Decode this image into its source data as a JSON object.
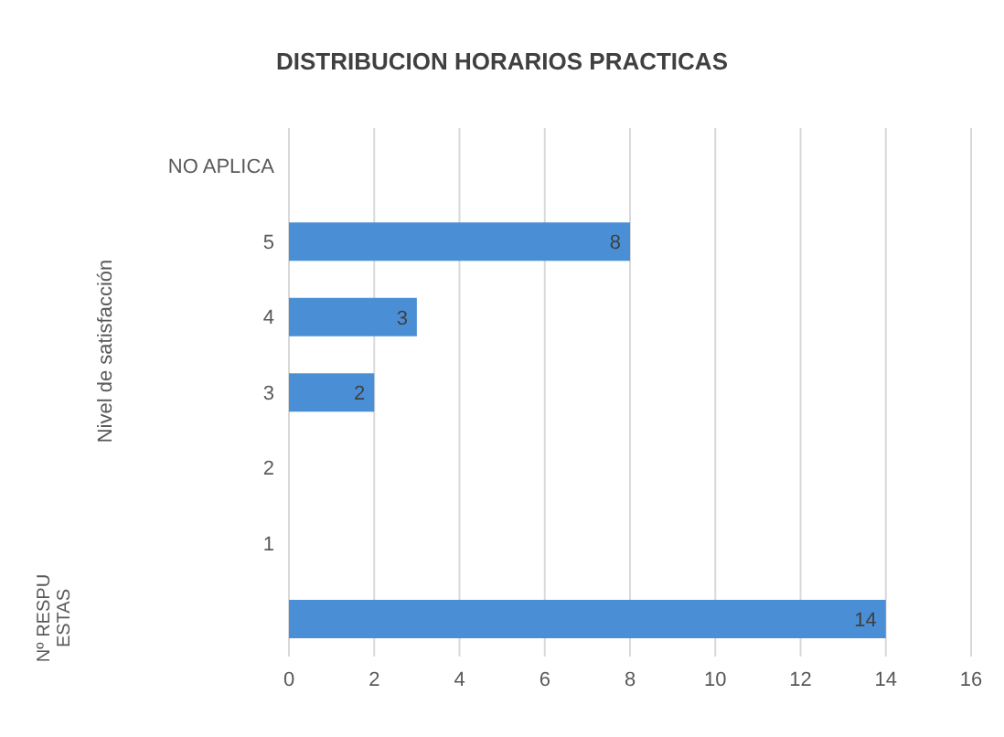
{
  "chart_data": {
    "type": "bar",
    "orientation": "horizontal",
    "title": "DISTRIBUCION HORARIOS PRACTICAS",
    "ylabel": "Nivel de satisfacción",
    "annotations": [
      "Nº RESPUESTAS"
    ],
    "categories": [
      "NO APLICA",
      "5",
      "4",
      "3",
      "2",
      "1",
      null
    ],
    "values": [
      null,
      8,
      3,
      2,
      null,
      null,
      14
    ],
    "color": "#4a8fd6",
    "xlim": [
      0,
      16
    ],
    "xticks": [
      0,
      2,
      4,
      6,
      8,
      10,
      12,
      14,
      16
    ],
    "grid": "x",
    "data_labels": true,
    "legend": false
  }
}
